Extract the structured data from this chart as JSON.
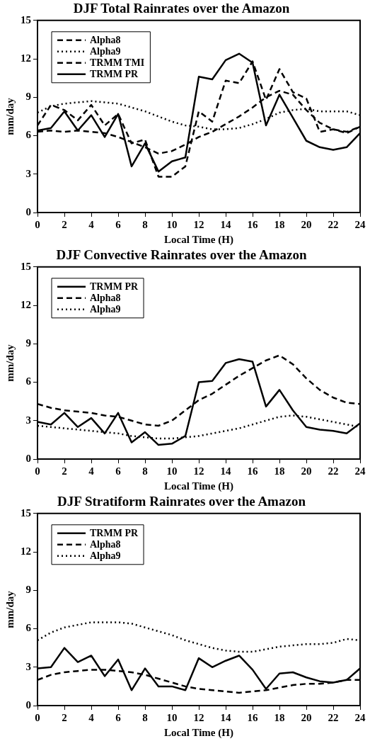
{
  "chart_data": [
    {
      "type": "line",
      "title": "DJF Total Rainrates over the Amazon",
      "xlabel": "Local Time (H)",
      "ylabel": "mm/day",
      "x": [
        0,
        1,
        2,
        3,
        4,
        5,
        6,
        7,
        8,
        9,
        10,
        11,
        12,
        13,
        14,
        15,
        16,
        17,
        18,
        19,
        20,
        21,
        22,
        23,
        24
      ],
      "xlim": [
        0,
        24
      ],
      "xticks": [
        0,
        2,
        4,
        6,
        8,
        10,
        12,
        14,
        16,
        18,
        20,
        22,
        24
      ],
      "ylim": [
        0,
        15
      ],
      "yticks": [
        0,
        3,
        6,
        9,
        12,
        15
      ],
      "grid": false,
      "legend": "top left",
      "marker": "none",
      "series": [
        {
          "name": "Alpha8",
          "color": "#000000",
          "line_style": "dashed",
          "values": [
            6.3,
            6.4,
            6.3,
            6.4,
            6.3,
            6.2,
            5.9,
            5.5,
            5.1,
            4.6,
            4.8,
            5.3,
            5.9,
            6.3,
            6.9,
            7.5,
            8.2,
            9.0,
            9.5,
            9.2,
            8.0,
            7.0,
            6.5,
            6.3,
            6.7
          ]
        },
        {
          "name": "Alpha9",
          "color": "#000000",
          "line_style": "dotted",
          "values": [
            7.8,
            8.3,
            8.5,
            8.6,
            8.7,
            8.6,
            8.5,
            8.2,
            7.9,
            7.5,
            7.1,
            6.8,
            6.7,
            6.5,
            6.5,
            6.6,
            6.9,
            7.3,
            7.8,
            8.0,
            8.1,
            7.9,
            7.9,
            7.9,
            7.6
          ]
        },
        {
          "name": "TRMM TMI",
          "color": "#000000",
          "line_style": "dashed",
          "values": [
            6.8,
            8.4,
            8.0,
            7.2,
            8.4,
            6.8,
            7.7,
            5.4,
            5.7,
            2.8,
            2.8,
            3.6,
            7.9,
            7.1,
            10.3,
            10.1,
            11.8,
            8.8,
            11.2,
            9.4,
            8.9,
            6.3,
            6.5,
            6.2,
            6.7
          ]
        },
        {
          "name": "TRMM PR",
          "color": "#000000",
          "line_style": "solid",
          "values": [
            6.4,
            6.6,
            7.9,
            6.4,
            7.6,
            5.9,
            7.7,
            3.6,
            5.4,
            3.2,
            4.0,
            4.3,
            10.6,
            10.4,
            11.9,
            12.4,
            11.7,
            6.8,
            9.2,
            7.4,
            5.6,
            5.1,
            4.9,
            5.1,
            6.2
          ]
        }
      ]
    },
    {
      "type": "line",
      "title": "DJF Convective Rainrates over the Amazon",
      "xlabel": "Local Time (H)",
      "ylabel": "mm/day",
      "x": [
        0,
        1,
        2,
        3,
        4,
        5,
        6,
        7,
        8,
        9,
        10,
        11,
        12,
        13,
        14,
        15,
        16,
        17,
        18,
        19,
        20,
        21,
        22,
        23,
        24
      ],
      "xlim": [
        0,
        24
      ],
      "xticks": [
        0,
        2,
        4,
        6,
        8,
        10,
        12,
        14,
        16,
        18,
        20,
        22,
        24
      ],
      "ylim": [
        0,
        15
      ],
      "yticks": [
        0,
        3,
        6,
        9,
        12,
        15
      ],
      "grid": false,
      "legend": "top left",
      "marker": "none",
      "series": [
        {
          "name": "TRMM PR",
          "color": "#000000",
          "line_style": "solid",
          "values": [
            2.9,
            2.7,
            3.6,
            2.5,
            3.2,
            2.0,
            3.6,
            1.3,
            2.1,
            1.1,
            1.2,
            1.8,
            6.0,
            6.1,
            7.5,
            7.8,
            7.6,
            4.1,
            5.4,
            3.8,
            2.5,
            2.3,
            2.2,
            2.0,
            2.8
          ]
        },
        {
          "name": "Alpha8",
          "color": "#000000",
          "line_style": "dashed",
          "values": [
            4.3,
            4.0,
            3.8,
            3.7,
            3.6,
            3.4,
            3.3,
            3.0,
            2.7,
            2.6,
            3.0,
            3.8,
            4.6,
            5.1,
            5.8,
            6.5,
            7.1,
            7.7,
            8.1,
            7.4,
            6.3,
            5.4,
            4.8,
            4.4,
            4.3
          ]
        },
        {
          "name": "Alpha9",
          "color": "#000000",
          "line_style": "dotted",
          "values": [
            2.6,
            2.5,
            2.4,
            2.3,
            2.2,
            2.1,
            2.0,
            1.8,
            1.7,
            1.6,
            1.6,
            1.7,
            1.8,
            2.0,
            2.2,
            2.4,
            2.7,
            3.0,
            3.3,
            3.4,
            3.3,
            3.1,
            2.9,
            2.7,
            2.5
          ]
        }
      ]
    },
    {
      "type": "line",
      "title": "DJF Stratiform Rainrates over the Amazon",
      "xlabel": "Local Time (H)",
      "ylabel": "mm/day",
      "x": [
        0,
        1,
        2,
        3,
        4,
        5,
        6,
        7,
        8,
        9,
        10,
        11,
        12,
        13,
        14,
        15,
        16,
        17,
        18,
        19,
        20,
        21,
        22,
        23,
        24
      ],
      "xlim": [
        0,
        24
      ],
      "xticks": [
        0,
        2,
        4,
        6,
        8,
        10,
        12,
        14,
        16,
        18,
        20,
        22,
        24
      ],
      "ylim": [
        0,
        15
      ],
      "yticks": [
        0,
        3,
        6,
        9,
        12,
        15
      ],
      "grid": false,
      "legend": "top left",
      "marker": "none",
      "series": [
        {
          "name": "TRMM PR",
          "color": "#000000",
          "line_style": "solid",
          "values": [
            2.9,
            3.0,
            4.5,
            3.4,
            3.9,
            2.3,
            3.6,
            1.2,
            2.9,
            1.5,
            1.5,
            1.2,
            3.7,
            3.0,
            3.5,
            3.9,
            2.8,
            1.3,
            2.5,
            2.6,
            2.2,
            1.9,
            1.8,
            2.0,
            2.9
          ]
        },
        {
          "name": "Alpha8",
          "color": "#000000",
          "line_style": "dashed",
          "values": [
            2.0,
            2.4,
            2.6,
            2.7,
            2.8,
            2.8,
            2.7,
            2.6,
            2.4,
            2.1,
            1.8,
            1.5,
            1.3,
            1.2,
            1.1,
            1.0,
            1.1,
            1.2,
            1.4,
            1.6,
            1.7,
            1.7,
            1.8,
            2.0,
            2.0
          ]
        },
        {
          "name": "Alpha9",
          "color": "#000000",
          "line_style": "dotted",
          "values": [
            5.1,
            5.7,
            6.1,
            6.3,
            6.5,
            6.5,
            6.5,
            6.4,
            6.1,
            5.8,
            5.5,
            5.1,
            4.8,
            4.5,
            4.3,
            4.2,
            4.2,
            4.4,
            4.6,
            4.7,
            4.8,
            4.8,
            4.9,
            5.2,
            5.1
          ]
        }
      ]
    }
  ]
}
